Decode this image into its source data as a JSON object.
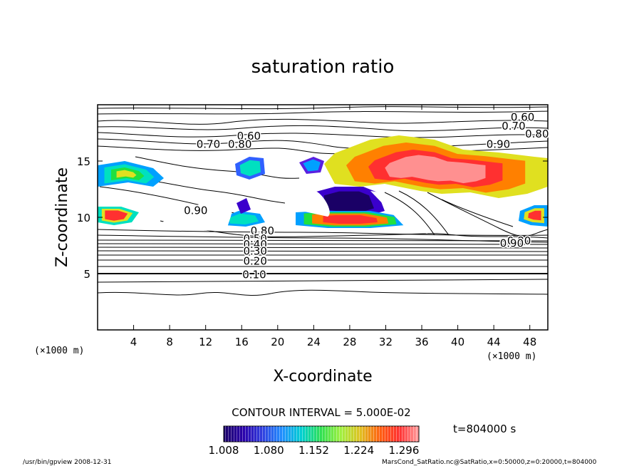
{
  "chart_data": {
    "type": "heatmap",
    "title": "saturation ratio",
    "xlabel": "X-coordinate",
    "ylabel": "Z-coordinate",
    "x_unit": "(×1000 m)",
    "z_unit": "(×1000 m)",
    "xlim": [
      0,
      50
    ],
    "ylim": [
      0,
      20
    ],
    "xticks": [
      4,
      8,
      12,
      16,
      20,
      24,
      28,
      32,
      36,
      40,
      44,
      48
    ],
    "yticks": [
      5,
      10,
      15
    ],
    "contour_interval": "CONTOUR INTERVAL = 5.000E-02",
    "time_label": "t=804000 s",
    "colorbar_ticks": [
      "1.008",
      "1.080",
      "1.152",
      "1.224",
      "1.296"
    ],
    "colorbar_range": [
      1.008,
      1.32
    ],
    "contour_labels": [
      {
        "text": "0.60",
        "x": 47.2,
        "z": 18.9
      },
      {
        "text": "0.70",
        "x": 46.2,
        "z": 18.1
      },
      {
        "text": "0.80",
        "x": 48.8,
        "z": 17.4
      },
      {
        "text": "0.90",
        "x": 44.5,
        "z": 16.5
      },
      {
        "text": "0.60",
        "x": 16.8,
        "z": 17.2
      },
      {
        "text": "0.70",
        "x": 12.3,
        "z": 16.5
      },
      {
        "text": "0.80",
        "x": 15.8,
        "z": 16.5
      },
      {
        "text": "0.90",
        "x": 10.9,
        "z": 10.6
      },
      {
        "text": "0.80",
        "x": 18.3,
        "z": 8.8
      },
      {
        "text": "0.50",
        "x": 17.5,
        "z": 8.1
      },
      {
        "text": "0.40",
        "x": 17.5,
        "z": 7.6
      },
      {
        "text": "0.30",
        "x": 17.5,
        "z": 7.0
      },
      {
        "text": "0.20",
        "x": 17.5,
        "z": 6.1
      },
      {
        "text": "0.10",
        "x": 17.4,
        "z": 4.9
      },
      {
        "text": "0.80",
        "x": 46.8,
        "z": 7.9
      },
      {
        "text": "0.90",
        "x": 46.0,
        "z": 7.7
      }
    ],
    "grid": false,
    "colormap": [
      "#1a0066",
      "#3a00cc",
      "#5a20e0",
      "#3060ff",
      "#00a0ff",
      "#00e0c0",
      "#20e040",
      "#80ff40",
      "#e0e020",
      "#ff8000",
      "#ff3030",
      "#ff9090"
    ]
  },
  "footer": {
    "left": "/usr/bin/gpview   2008-12-31",
    "right": "MarsCond_SatRatio.nc@SatRatio,x=0:50000,z=0:20000,t=804000"
  }
}
